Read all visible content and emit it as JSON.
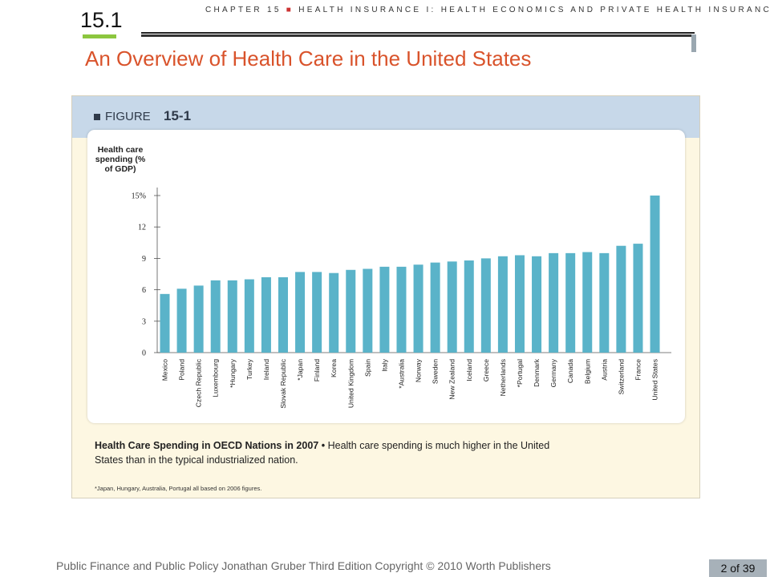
{
  "header": {
    "section_number": "15.1",
    "chapter_prefix": "CHAPTER 15",
    "chapter_title": "HEALTH INSURANCE I: HEALTH ECONOMICS AND PRIVATE HEALTH INSURANCE",
    "slide_title": "An Overview of Health Care in the United States",
    "accent_color": "#d9532b"
  },
  "figure": {
    "label": "FIGURE",
    "number": "15-1",
    "caption_title": "Health Care Spending in OECD Nations in 2007",
    "caption_text": "Health care spending is much higher in the United States than in the typical industrialized nation.",
    "footnote": "*Japan, Hungary, Australia, Portugal all based on 2006 figures."
  },
  "chart_data": {
    "type": "bar",
    "ylabel": "Health care spending (% of GDP)",
    "xlabel": "",
    "title": "",
    "ylim": [
      0,
      15
    ],
    "yticks": [
      {
        "value": 0,
        "label": "0"
      },
      {
        "value": 3,
        "label": "3"
      },
      {
        "value": 6,
        "label": "6"
      },
      {
        "value": 9,
        "label": "9"
      },
      {
        "value": 12,
        "label": "12"
      },
      {
        "value": 15,
        "label": "15%"
      }
    ],
    "categories": [
      "Mexico",
      "Poland",
      "Czech Republic",
      "Luxembourg",
      "*Hungary",
      "Turkey",
      "Ireland",
      "Slovak Republic",
      "*Japan",
      "Finland",
      "Korea",
      "United Kingdom",
      "Spain",
      "Italy",
      "*Australia",
      "Norway",
      "Sweden",
      "New Zealand",
      "Iceland",
      "Greece",
      "Netherlands",
      "*Portugal",
      "Denmark",
      "Germany",
      "Canada",
      "Belgium",
      "Austria",
      "Switzerland",
      "France",
      "United States"
    ],
    "values": [
      5.6,
      6.1,
      6.4,
      6.9,
      6.9,
      7.0,
      7.2,
      7.2,
      7.7,
      7.7,
      7.6,
      7.9,
      8.0,
      8.2,
      8.2,
      8.4,
      8.6,
      8.7,
      8.8,
      9.0,
      9.2,
      9.3,
      9.2,
      9.5,
      9.5,
      9.6,
      9.5,
      10.2,
      10.4,
      15.0
    ],
    "bar_color": "#5ab3c9",
    "grid": false
  },
  "footer": {
    "text": "Public Finance and Public Policy   Jonathan Gruber   Third Edition   Copyright © 2010  Worth Publishers",
    "page": "2 of 39"
  }
}
